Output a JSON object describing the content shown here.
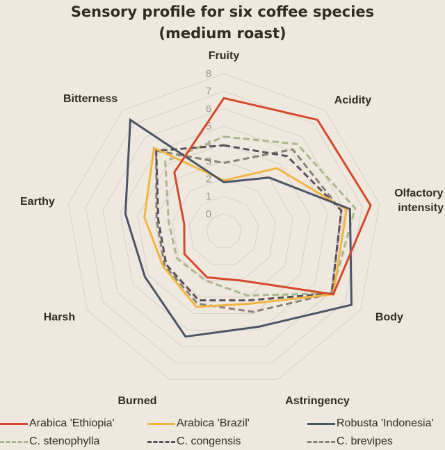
{
  "chart_data": {
    "type": "radar",
    "title": "Sensory profile for six coffee species",
    "subtitle": "(medium roast)",
    "axes": [
      "Fruity",
      "Acidity",
      "Olfactory intensity",
      "Body",
      "Astringency",
      "Burned",
      "Harsh",
      "Earthy",
      "Bitterness"
    ],
    "axis_label_lines": [
      [
        "Fruity"
      ],
      [
        "Acidity"
      ],
      [
        "Olfactory",
        "intensity"
      ],
      [
        "Body"
      ],
      [
        "Astringency"
      ],
      [
        "Burned"
      ],
      [
        "Harsh"
      ],
      [
        "Earthy"
      ],
      [
        "Bitterness"
      ]
    ],
    "radial_range": [
      -1,
      8
    ],
    "radial_ticks": [
      "0",
      "1",
      "2",
      "3",
      "4",
      "5",
      "6",
      "7",
      "8"
    ],
    "grid": true,
    "legend_position": "bottom",
    "series": [
      {
        "name": "Arabica 'Ethiopia'",
        "color": "#d4492a",
        "style": "solid",
        "values": [
          6.6,
          7.3,
          7.5,
          6.2,
          2.0,
          1.8,
          1.6,
          1.3,
          3.4
        ]
      },
      {
        "name": "Arabica 'Brazil'",
        "color": "#f2b544",
        "style": "solid",
        "values": [
          1.9,
          3.7,
          6.1,
          6.2,
          3.4,
          3.6,
          3.0,
          3.6,
          5.2
        ]
      },
      {
        "name": "Robusta 'Indonesia'",
        "color": "#4a5566",
        "style": "solid",
        "values": [
          1.8,
          3.0,
          6.3,
          7.4,
          4.8,
          5.4,
          4.2,
          4.7,
          7.3
        ]
      },
      {
        "name": "C. stenophylla",
        "color": "#a9b68c",
        "style": "dashed",
        "values": [
          4.4,
          5.5,
          6.6,
          6.1,
          2.9,
          2.0,
          2.1,
          2.2,
          4.2
        ]
      },
      {
        "name": "C. congensis",
        "color": "#5b4f5c",
        "style": "dashed",
        "values": [
          3.9,
          4.6,
          5.8,
          6.1,
          3.2,
          3.2,
          2.8,
          2.8,
          5.0
        ]
      },
      {
        "name": "C. brevipes",
        "color": "#8b8075",
        "style": "dashed",
        "values": [
          2.9,
          5.1,
          5.8,
          6.1,
          3.9,
          3.4,
          2.9,
          2.9,
          5.0
        ]
      }
    ]
  },
  "colors": {
    "background": "#efe8de",
    "grid": "#d9cfc6",
    "text": "#2f2c22",
    "tick_text": "#9a958c"
  }
}
